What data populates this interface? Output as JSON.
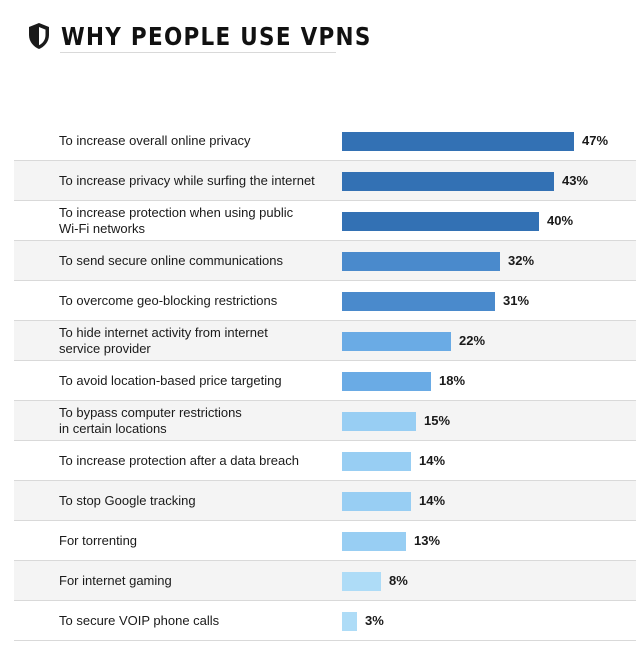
{
  "header": {
    "title": "WHY PEOPLE USE VPNS",
    "icon": "shield-icon"
  },
  "chart_data": {
    "type": "bar",
    "orientation": "horizontal",
    "title": "WHY PEOPLE USE VPNS",
    "xlabel": "",
    "ylabel": "",
    "xlim": [
      0,
      47
    ],
    "grid": false,
    "value_suffix": "%",
    "categories": [
      "To increase overall online privacy",
      "To increase privacy while surfing the internet",
      "To increase protection when using public\nWi-Fi networks",
      "To send secure online communications",
      "To overcome geo-blocking restrictions",
      "To hide internet activity from internet\nservice provider",
      "To avoid location-based price targeting",
      "To bypass computer restrictions\nin certain locations",
      "To increase protection after a data breach",
      "To stop Google tracking",
      "For torrenting",
      "For internet gaming",
      "To secure VOIP phone calls"
    ],
    "values": [
      47,
      43,
      40,
      32,
      31,
      22,
      18,
      15,
      14,
      14,
      13,
      8,
      3
    ],
    "value_labels": [
      "47%",
      "43%",
      "40%",
      "32%",
      "31%",
      "22%",
      "18%",
      "15%",
      "14%",
      "14%",
      "13%",
      "8%",
      "3%"
    ],
    "bar_colors": [
      "#3371b4",
      "#3371b4",
      "#3371b4",
      "#4a8acc",
      "#4a8acc",
      "#6aabe5",
      "#6aabe5",
      "#98cef3",
      "#98cef3",
      "#98cef3",
      "#98cef3",
      "#aedcf7",
      "#aedcf7"
    ]
  }
}
